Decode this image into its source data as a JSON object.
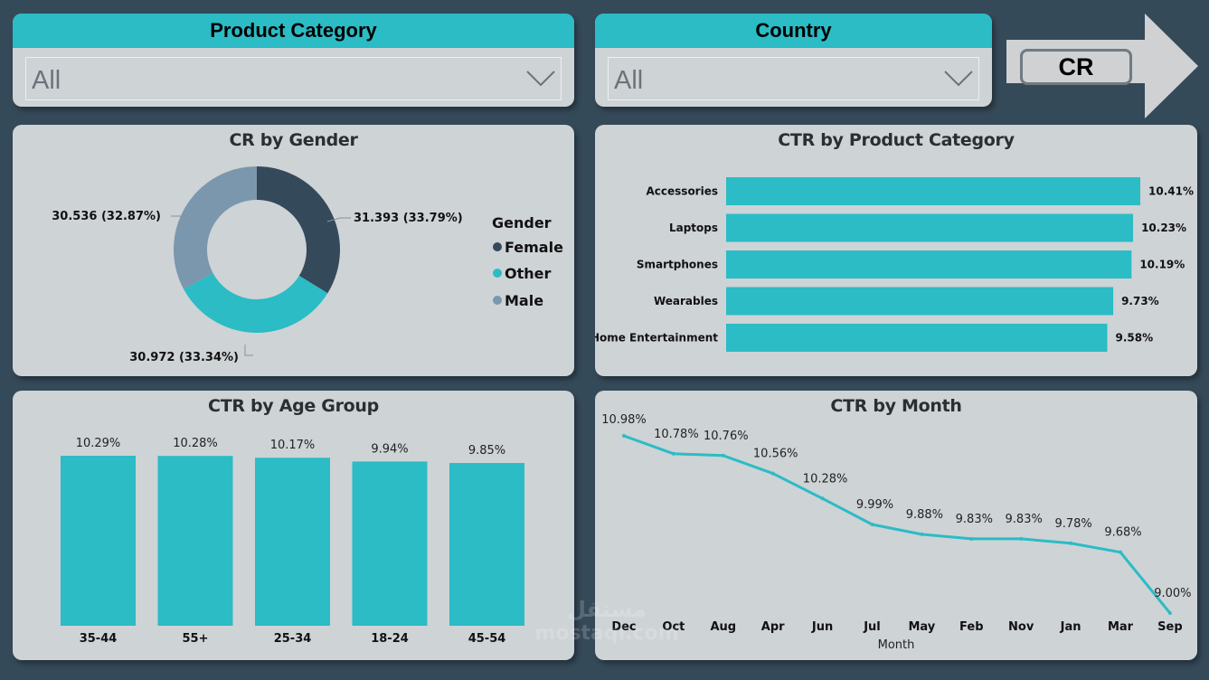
{
  "slicers": [
    {
      "title": "Product Category",
      "value": "All"
    },
    {
      "title": "Country",
      "value": "All"
    }
  ],
  "nav_button": {
    "label": "CR"
  },
  "colors": {
    "background": "#354a59",
    "card": "#ced3d6",
    "accent": "#2bbcc5",
    "female": "#34495a",
    "other": "#2bbcc5",
    "male": "#7b97ad"
  },
  "watermark": {
    "line1": "مستقل",
    "line2": "mostaql.com"
  },
  "chart_data": [
    {
      "id": "gender",
      "type": "pie",
      "variant": "donut",
      "title": "CR by Gender",
      "legend_title": "Gender",
      "legend_position": "right",
      "slices": [
        {
          "label": "Female",
          "value": 31.393,
          "percent": 33.79,
          "display": "31.393 (33.79%)",
          "color": "#34495a"
        },
        {
          "label": "Other",
          "value": 30.972,
          "percent": 33.34,
          "display": "30.972 (33.34%)",
          "color": "#2bbcc5"
        },
        {
          "label": "Male",
          "value": 30.536,
          "percent": 32.87,
          "display": "30.536 (32.87%)",
          "color": "#7b97ad"
        }
      ]
    },
    {
      "id": "product",
      "type": "bar",
      "orientation": "horizontal",
      "title": "CTR by Product Category",
      "categories": [
        "Accessories",
        "Laptops",
        "Smartphones",
        "Wearables",
        "Home Entertainment"
      ],
      "values": [
        10.41,
        10.23,
        10.19,
        9.73,
        9.58
      ],
      "labels": [
        "10.41%",
        "10.23%",
        "10.19%",
        "9.73%",
        "9.58%"
      ],
      "xlim": [
        0,
        10.41
      ]
    },
    {
      "id": "age",
      "type": "bar",
      "orientation": "vertical",
      "title": "CTR by Age Group",
      "categories": [
        "35-44",
        "55+",
        "25-34",
        "18-24",
        "45-54"
      ],
      "values": [
        10.29,
        10.28,
        10.17,
        9.94,
        9.85
      ],
      "labels": [
        "10.29%",
        "10.28%",
        "10.17%",
        "9.94%",
        "9.85%"
      ],
      "ylim": [
        0,
        10.29
      ]
    },
    {
      "id": "month",
      "type": "line",
      "title": "CTR by Month",
      "xlabel": "Month",
      "ylabel": "",
      "categories": [
        "Dec",
        "Oct",
        "Aug",
        "Apr",
        "Jun",
        "Jul",
        "May",
        "Feb",
        "Nov",
        "Jan",
        "Mar",
        "Sep"
      ],
      "values": [
        10.98,
        10.78,
        10.76,
        10.56,
        10.28,
        9.99,
        9.88,
        9.83,
        9.83,
        9.78,
        9.68,
        9.0
      ],
      "labels": [
        "10.98%",
        "10.78%",
        "10.76%",
        "10.56%",
        "10.28%",
        "9.99%",
        "9.88%",
        "9.83%",
        "9.83%",
        "9.78%",
        "9.68%",
        "9.00%"
      ],
      "ylim": [
        9.0,
        10.98
      ]
    }
  ]
}
